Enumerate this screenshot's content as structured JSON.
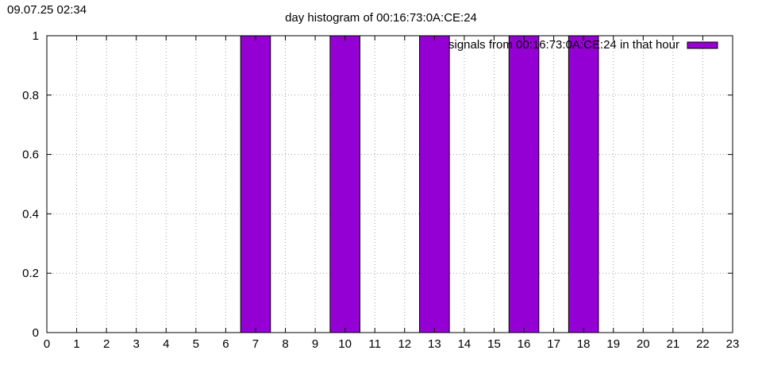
{
  "timestamp": "09.07.25 02:34",
  "chart_data": {
    "type": "bar",
    "title": "day histogram of 00:16:73:0A:CE:24",
    "xlabel": "",
    "ylabel": "",
    "xlim": [
      0,
      23
    ],
    "ylim": [
      0,
      1
    ],
    "x_ticks": [
      "0",
      "1",
      "2",
      "3",
      "4",
      "5",
      "6",
      "7",
      "8",
      "9",
      "10",
      "11",
      "12",
      "13",
      "14",
      "15",
      "16",
      "17",
      "18",
      "19",
      "20",
      "21",
      "22",
      "23"
    ],
    "y_ticks": [
      "0",
      "0.2",
      "0.4",
      "0.6",
      "0.8",
      "1"
    ],
    "grid": true,
    "legend_position": "top-right",
    "series": [
      {
        "name": "signals from 00:16:73:0A:CE:24 in that hour",
        "color": "#9400d3",
        "points": [
          {
            "x": 7,
            "y": 1
          },
          {
            "x": 10,
            "y": 1
          },
          {
            "x": 13,
            "y": 1
          },
          {
            "x": 16,
            "y": 1
          },
          {
            "x": 18,
            "y": 1
          }
        ]
      }
    ]
  }
}
